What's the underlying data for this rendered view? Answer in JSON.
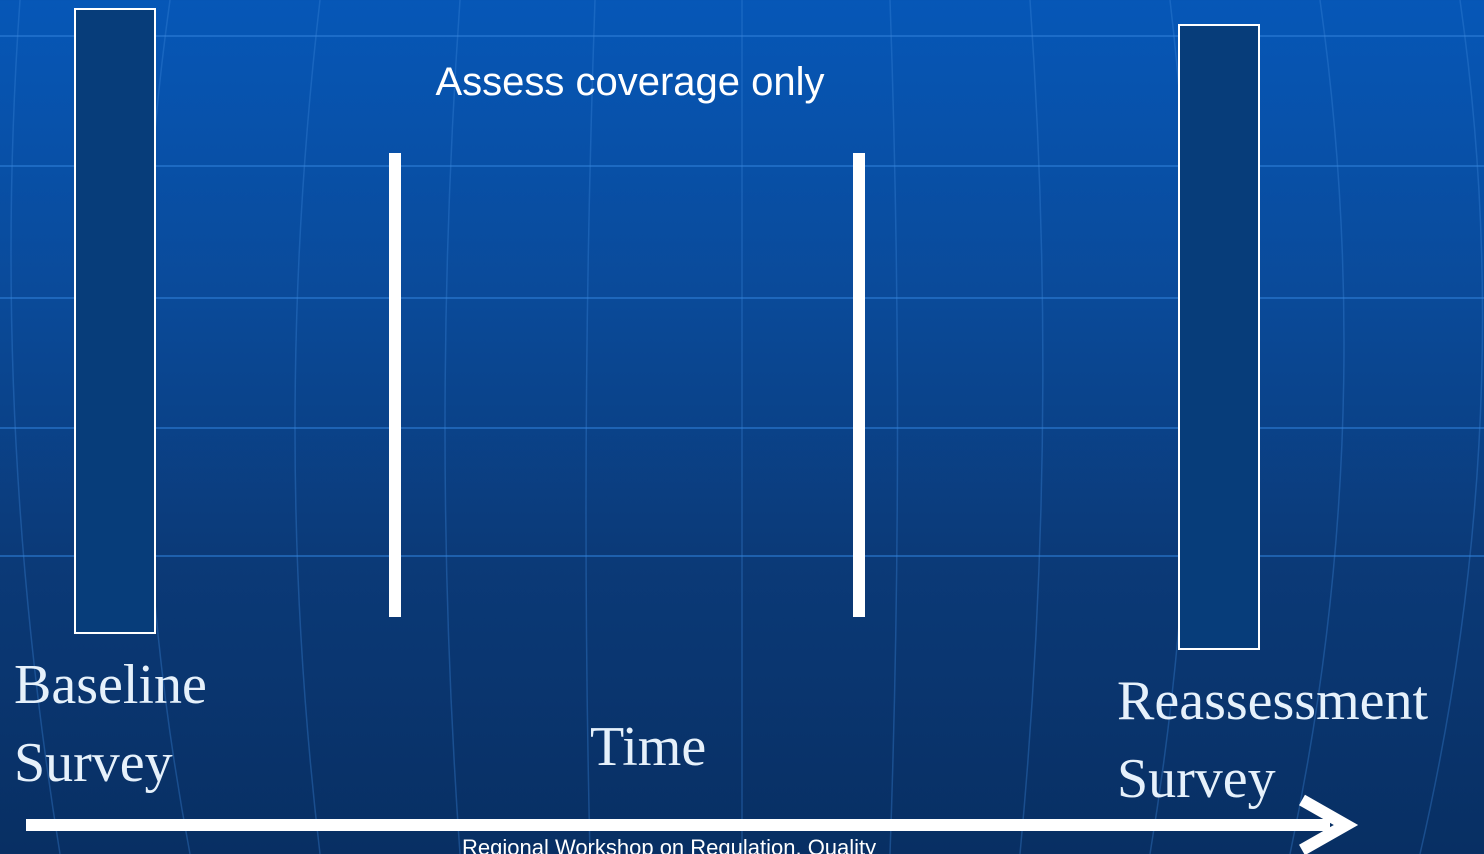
{
  "slide": {
    "caption": "Assess coverage only",
    "baseline_label_line1": "Baseline",
    "baseline_label_line2": "Survey",
    "reassessment_label_line1": "Reassessment",
    "reassessment_label_line2": "Survey",
    "time_label": "Time",
    "footer_text": "Regional Workshop on Regulation, Quality"
  },
  "colors": {
    "background_top": "#0657b7",
    "background_bottom": "#082f63",
    "bar_fill": "#073d7a",
    "line": "#ffffff",
    "label_text": "#e6f1fb"
  }
}
